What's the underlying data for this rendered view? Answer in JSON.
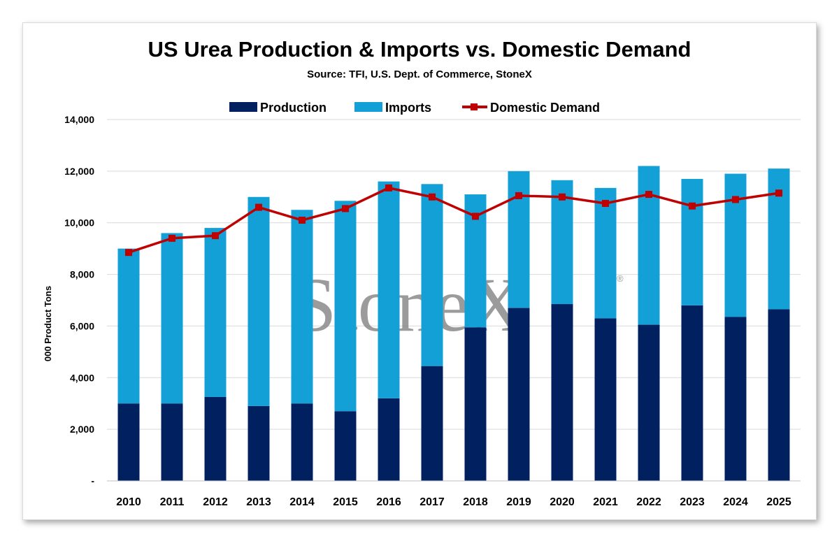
{
  "chart_data": {
    "type": "bar",
    "stacked": true,
    "title": "US Urea Production & Imports vs. Domestic Demand",
    "subtitle": "Source: TFI, U.S. Dept. of Commerce, StoneX",
    "xlabel": "",
    "ylabel": "000 Product Tons",
    "ylim": [
      0,
      14000
    ],
    "yticks": [
      0,
      2000,
      4000,
      6000,
      8000,
      10000,
      12000,
      14000
    ],
    "ytick_labels": [
      "-",
      "2,000",
      "4,000",
      "6,000",
      "8,000",
      "10,000",
      "12,000",
      "14,000"
    ],
    "grid": true,
    "legend_position": "top",
    "categories": [
      "2010",
      "2011",
      "2012",
      "2013",
      "2014",
      "2015",
      "2016",
      "2017",
      "2018",
      "2019",
      "2020",
      "2021",
      "2022",
      "2023",
      "2024",
      "2025"
    ],
    "series": [
      {
        "name": "Production",
        "kind": "bar",
        "color": "#002060",
        "values": [
          3000,
          3000,
          3250,
          2900,
          3000,
          2700,
          3200,
          4450,
          5950,
          6700,
          6850,
          6300,
          6050,
          6800,
          6350,
          6650
        ]
      },
      {
        "name": "Imports",
        "kind": "bar",
        "color": "#12A0D7",
        "values": [
          6000,
          6600,
          6550,
          8100,
          7500,
          8150,
          8400,
          7050,
          5150,
          5300,
          4800,
          5050,
          6150,
          4900,
          5550,
          5450
        ]
      },
      {
        "name": "Domestic Demand",
        "kind": "line",
        "color": "#C00000",
        "values": [
          8850,
          9400,
          9500,
          10600,
          10100,
          10550,
          11350,
          11000,
          10250,
          11050,
          11000,
          10750,
          11100,
          10650,
          10900,
          11150
        ]
      }
    ],
    "watermark": "StoneX",
    "watermark_mark": "®"
  }
}
